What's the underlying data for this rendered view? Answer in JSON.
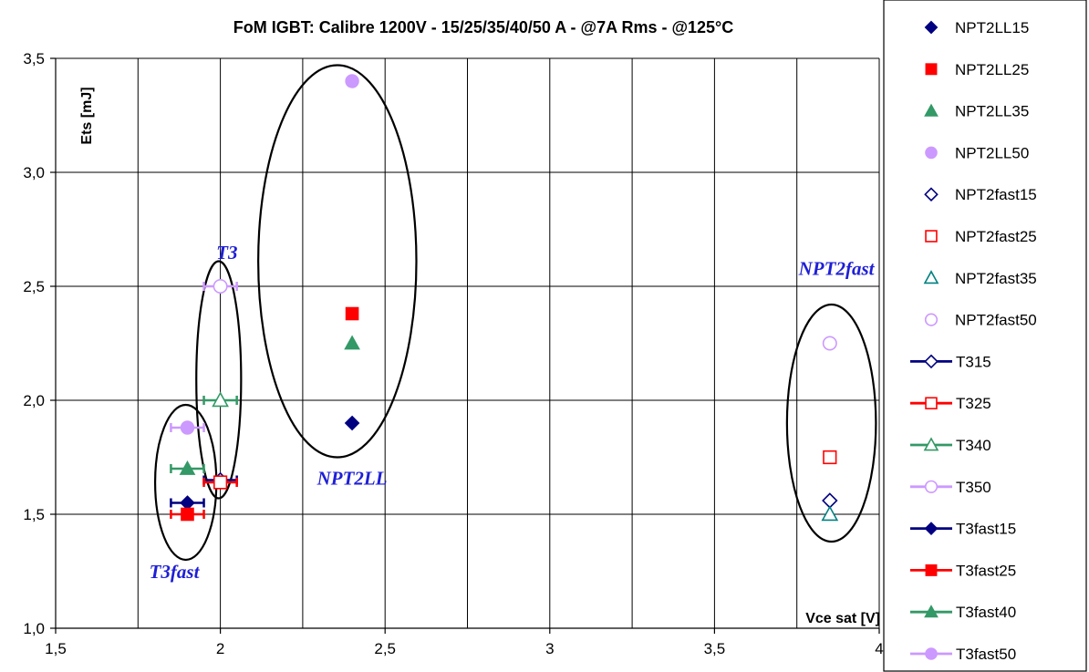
{
  "chart_data": {
    "type": "scatter",
    "title": "FoM IGBT: Calibre 1200V - 15/25/35/40/50 A - @7A Rms - @125°C",
    "xlabel": "Vce sat [V]",
    "ylabel": "Ets [mJ]",
    "xlim": [
      1.5,
      4
    ],
    "ylim": [
      1.0,
      3.5
    ],
    "x_ticks": [
      "1,5",
      "2",
      "2,5",
      "3",
      "3,5",
      "4"
    ],
    "y_ticks": [
      "1,0",
      "1,5",
      "2,0",
      "2,5",
      "3,0",
      "3,5"
    ],
    "grid": true,
    "legend_position": "right",
    "series": [
      {
        "name": "NPT2LL15",
        "marker": "diamond",
        "filled": true,
        "color": "#000080",
        "points": [
          [
            2.4,
            1.9
          ]
        ]
      },
      {
        "name": "NPT2LL25",
        "marker": "square",
        "filled": true,
        "color": "#ff0000",
        "points": [
          [
            2.4,
            2.38
          ]
        ]
      },
      {
        "name": "NPT2LL35",
        "marker": "triangle",
        "filled": true,
        "color": "#339966",
        "points": [
          [
            2.4,
            2.25
          ]
        ]
      },
      {
        "name": "NPT2LL50",
        "marker": "circle",
        "filled": true,
        "color": "#cc99ff",
        "points": [
          [
            2.4,
            3.4
          ]
        ]
      },
      {
        "name": "NPT2fast15",
        "marker": "diamond",
        "filled": false,
        "color": "#000080",
        "points": [
          [
            3.85,
            1.56
          ]
        ]
      },
      {
        "name": "NPT2fast25",
        "marker": "square",
        "filled": false,
        "color": "#ff0000",
        "points": [
          [
            3.85,
            1.75
          ]
        ]
      },
      {
        "name": "NPT2fast35",
        "marker": "triangle",
        "filled": false,
        "color": "#008080",
        "points": [
          [
            3.85,
            1.5
          ]
        ]
      },
      {
        "name": "NPT2fast50",
        "marker": "circle",
        "filled": false,
        "color": "#cc99ff",
        "points": [
          [
            3.85,
            2.25
          ]
        ]
      },
      {
        "name": "T315",
        "marker": "diamond",
        "filled": false,
        "color": "#000080",
        "line": true,
        "points": [
          [
            2.0,
            1.65
          ]
        ],
        "xerr": 0.05
      },
      {
        "name": "T325",
        "marker": "square",
        "filled": false,
        "color": "#ff0000",
        "line": true,
        "points": [
          [
            2.0,
            1.64
          ]
        ],
        "xerr": 0.05
      },
      {
        "name": "T340",
        "marker": "triangle",
        "filled": false,
        "color": "#339966",
        "line": true,
        "points": [
          [
            2.0,
            2.0
          ]
        ],
        "xerr": 0.05
      },
      {
        "name": "T350",
        "marker": "circle",
        "filled": false,
        "color": "#cc99ff",
        "line": true,
        "points": [
          [
            2.0,
            2.5
          ]
        ],
        "xerr": 0.05
      },
      {
        "name": "T3fast15",
        "marker": "diamond",
        "filled": true,
        "color": "#000080",
        "line": true,
        "points": [
          [
            1.9,
            1.55
          ]
        ],
        "xerr": 0.05
      },
      {
        "name": "T3fast25",
        "marker": "square",
        "filled": true,
        "color": "#ff0000",
        "line": true,
        "points": [
          [
            1.9,
            1.5
          ]
        ],
        "xerr": 0.05
      },
      {
        "name": "T3fast40",
        "marker": "triangle",
        "filled": true,
        "color": "#339966",
        "line": true,
        "points": [
          [
            1.9,
            1.7
          ]
        ],
        "xerr": 0.05
      },
      {
        "name": "T3fast50",
        "marker": "circle",
        "filled": true,
        "color": "#cc99ff",
        "line": true,
        "points": [
          [
            1.9,
            1.88
          ]
        ],
        "xerr": 0.05
      }
    ],
    "annotations": [
      {
        "text": "T3",
        "x": 2.02,
        "y": 2.62
      },
      {
        "text": "NPT2LL",
        "x": 2.4,
        "y": 1.63
      },
      {
        "text": "T3fast",
        "x": 1.86,
        "y": 1.22
      },
      {
        "text": "NPT2fast",
        "x": 3.87,
        "y": 2.55
      }
    ],
    "ellipses": [
      {
        "group": "T3fast",
        "cx": 1.895,
        "cy": 1.64,
        "rx": 0.093,
        "ry": 0.34
      },
      {
        "group": "T3",
        "cx": 1.995,
        "cy": 2.09,
        "rx": 0.068,
        "ry": 0.52
      },
      {
        "group": "NPT2LL",
        "cx": 2.355,
        "cy": 2.61,
        "rx": 0.24,
        "ry": 0.86
      },
      {
        "group": "NPT2fast",
        "cx": 3.855,
        "cy": 1.9,
        "rx": 0.135,
        "ry": 0.52
      }
    ]
  }
}
